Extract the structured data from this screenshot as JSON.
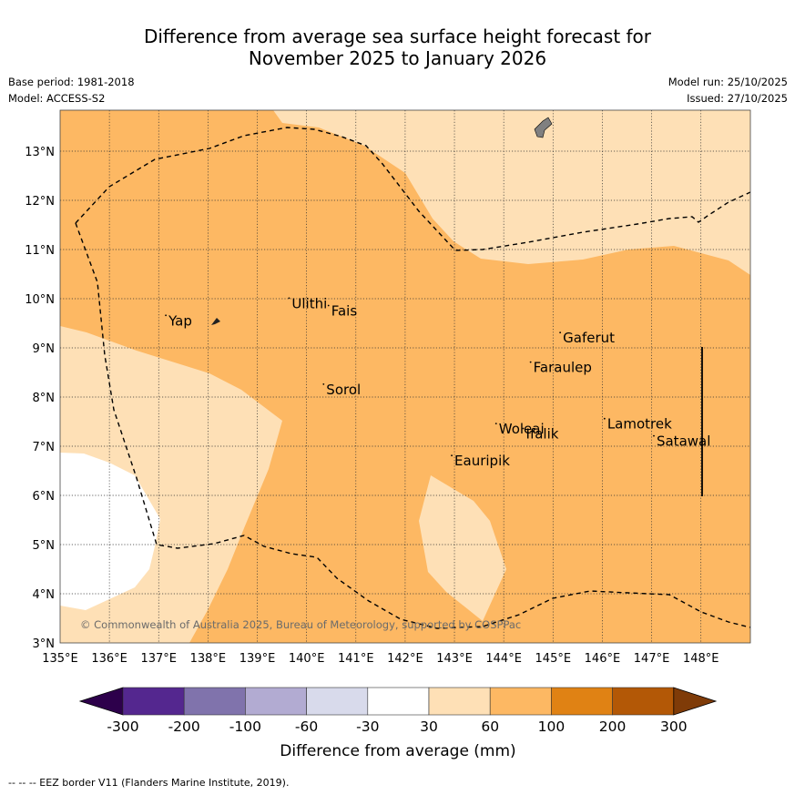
{
  "title": {
    "line1": "Difference from average sea surface height forecast for",
    "line2": "November 2025 to January 2026"
  },
  "meta": {
    "base_period": "Base period: 1981-2018",
    "model": "Model: ACCESS-S2",
    "model_run": "Model run: 25/10/2025",
    "issued": "Issued: 27/10/2025"
  },
  "axes": {
    "lon_ticks": [
      "135°E",
      "136°E",
      "137°E",
      "138°E",
      "139°E",
      "140°E",
      "141°E",
      "142°E",
      "143°E",
      "144°E",
      "145°E",
      "146°E",
      "147°E",
      "148°E"
    ],
    "lat_ticks": [
      "3°N",
      "4°N",
      "5°N",
      "6°N",
      "7°N",
      "8°N",
      "9°N",
      "10°N",
      "11°N",
      "12°N",
      "13°N"
    ]
  },
  "places": [
    {
      "name": "Yap",
      "lon": 137.2,
      "lat": 9.55
    },
    {
      "name": "Ulithi",
      "lon": 139.7,
      "lat": 9.9
    },
    {
      "name": "Fais",
      "lon": 140.5,
      "lat": 9.75
    },
    {
      "name": "Gaferut",
      "lon": 145.2,
      "lat": 9.2
    },
    {
      "name": "Faraulep",
      "lon": 144.6,
      "lat": 8.6
    },
    {
      "name": "Sorol",
      "lon": 140.4,
      "lat": 8.15
    },
    {
      "name": "Lamotrek",
      "lon": 146.1,
      "lat": 7.45
    },
    {
      "name": "Woleai",
      "lon": 143.9,
      "lat": 7.35
    },
    {
      "name": "Ifalik",
      "lon": 144.45,
      "lat": 7.25
    },
    {
      "name": "Satawal",
      "lon": 147.1,
      "lat": 7.1
    },
    {
      "name": "Eauripik",
      "lon": 143.0,
      "lat": 6.7
    }
  ],
  "copyright": "© Commonwealth of Australia 2025, Bureau of Meteorology, supported by COSPPac",
  "colorbar": {
    "labels": [
      "-300",
      "-200",
      "-100",
      "-60",
      "-30",
      "30",
      "60",
      "100",
      "200",
      "300"
    ],
    "colors": [
      "#54278f",
      "#8073ac",
      "#b2abd2",
      "#d8daeb",
      "#ffffff",
      "#fee0b6",
      "#fdb863",
      "#e08214",
      "#b35806"
    ],
    "low_extend_color": "#2d004b",
    "high_extend_color": "#7f3b08",
    "title": "Difference from average (mm)"
  },
  "footer": "--  --  -- EEZ border V11 (Flanders Marine Institute, 2019)."
}
